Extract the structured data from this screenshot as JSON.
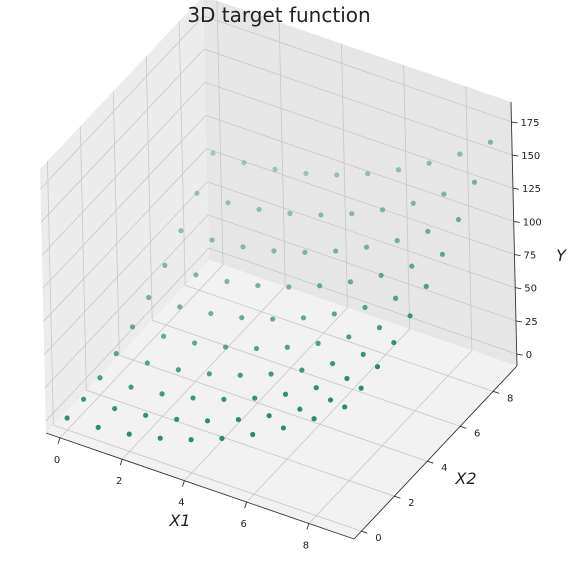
{
  "chart_data": {
    "type": "scatter",
    "title": "3D target function",
    "xlabel": "X1",
    "ylabel": "X2",
    "zlabel": "Y",
    "x_ticks": [
      0,
      2,
      4,
      6,
      8
    ],
    "y_ticks": [
      0,
      2,
      4,
      6,
      8
    ],
    "z_ticks": [
      0,
      25,
      50,
      75,
      100,
      125,
      150,
      175
    ],
    "xlim": [
      -0.45,
      9.45
    ],
    "ylim": [
      -0.45,
      9.45
    ],
    "zlim": [
      -9,
      190
    ],
    "grid": true,
    "legend": "none",
    "marker_color": "#2e8b6a",
    "grid_x": [
      0,
      1,
      2,
      3,
      4,
      5,
      6,
      7,
      8,
      9
    ],
    "grid_y": [
      0,
      1,
      2,
      3,
      4,
      5,
      6,
      7,
      8,
      9
    ],
    "z_formula_note": "",
    "points": [
      [
        0,
        0,
        0
      ],
      [
        1,
        0,
        1
      ],
      [
        2,
        0,
        4
      ],
      [
        3,
        0,
        9
      ],
      [
        4,
        0,
        16
      ],
      [
        5,
        0,
        25
      ],
      [
        6,
        0,
        36
      ],
      [
        7,
        0,
        49
      ],
      [
        8,
        0,
        64
      ],
      [
        9,
        0,
        81
      ],
      [
        0,
        1,
        1
      ],
      [
        1,
        1,
        2
      ],
      [
        2,
        1,
        5
      ],
      [
        3,
        1,
        10
      ],
      [
        4,
        1,
        17
      ],
      [
        5,
        1,
        26
      ],
      [
        6,
        1,
        37
      ],
      [
        7,
        1,
        50
      ],
      [
        8,
        1,
        65
      ],
      [
        9,
        1,
        82
      ],
      [
        0,
        2,
        4
      ],
      [
        1,
        2,
        5
      ],
      [
        2,
        2,
        8
      ],
      [
        3,
        2,
        13
      ],
      [
        4,
        2,
        20
      ],
      [
        5,
        2,
        29
      ],
      [
        6,
        2,
        40
      ],
      [
        7,
        2,
        53
      ],
      [
        8,
        2,
        68
      ],
      [
        9,
        2,
        85
      ],
      [
        0,
        3,
        9
      ],
      [
        1,
        3,
        10
      ],
      [
        2,
        3,
        13
      ],
      [
        3,
        3,
        18
      ],
      [
        4,
        3,
        25
      ],
      [
        5,
        3,
        34
      ],
      [
        6,
        3,
        45
      ],
      [
        7,
        3,
        58
      ],
      [
        8,
        3,
        73
      ],
      [
        9,
        3,
        90
      ],
      [
        0,
        4,
        16
      ],
      [
        1,
        4,
        17
      ],
      [
        2,
        4,
        20
      ],
      [
        3,
        4,
        25
      ],
      [
        4,
        4,
        32
      ],
      [
        5,
        4,
        41
      ],
      [
        6,
        4,
        52
      ],
      [
        7,
        4,
        65
      ],
      [
        8,
        4,
        80
      ],
      [
        9,
        4,
        97
      ],
      [
        0,
        5,
        25
      ],
      [
        1,
        5,
        26
      ],
      [
        2,
        5,
        29
      ],
      [
        3,
        5,
        34
      ],
      [
        4,
        5,
        41
      ],
      [
        5,
        5,
        50
      ],
      [
        6,
        5,
        61
      ],
      [
        7,
        5,
        74
      ],
      [
        8,
        5,
        89
      ],
      [
        9,
        5,
        106
      ],
      [
        0,
        6,
        36
      ],
      [
        1,
        6,
        37
      ],
      [
        2,
        6,
        40
      ],
      [
        3,
        6,
        45
      ],
      [
        4,
        6,
        52
      ],
      [
        5,
        6,
        61
      ],
      [
        6,
        6,
        72
      ],
      [
        7,
        6,
        85
      ],
      [
        8,
        6,
        100
      ],
      [
        9,
        6,
        117
      ],
      [
        0,
        7,
        49
      ],
      [
        1,
        7,
        50
      ],
      [
        2,
        7,
        53
      ],
      [
        3,
        7,
        58
      ],
      [
        4,
        7,
        65
      ],
      [
        5,
        7,
        74
      ],
      [
        6,
        7,
        85
      ],
      [
        7,
        7,
        98
      ],
      [
        8,
        7,
        113
      ],
      [
        9,
        7,
        130
      ],
      [
        0,
        8,
        64
      ],
      [
        1,
        8,
        65
      ],
      [
        2,
        8,
        68
      ],
      [
        3,
        8,
        73
      ],
      [
        4,
        8,
        80
      ],
      [
        5,
        8,
        89
      ],
      [
        6,
        8,
        100
      ],
      [
        7,
        8,
        113
      ],
      [
        8,
        8,
        128
      ],
      [
        9,
        8,
        145
      ],
      [
        0,
        9,
        81
      ],
      [
        1,
        9,
        82
      ],
      [
        2,
        9,
        85
      ],
      [
        3,
        9,
        90
      ],
      [
        4,
        9,
        97
      ],
      [
        5,
        9,
        106
      ],
      [
        6,
        9,
        117
      ],
      [
        7,
        9,
        130
      ],
      [
        8,
        9,
        145
      ],
      [
        9,
        9,
        162
      ]
    ]
  }
}
